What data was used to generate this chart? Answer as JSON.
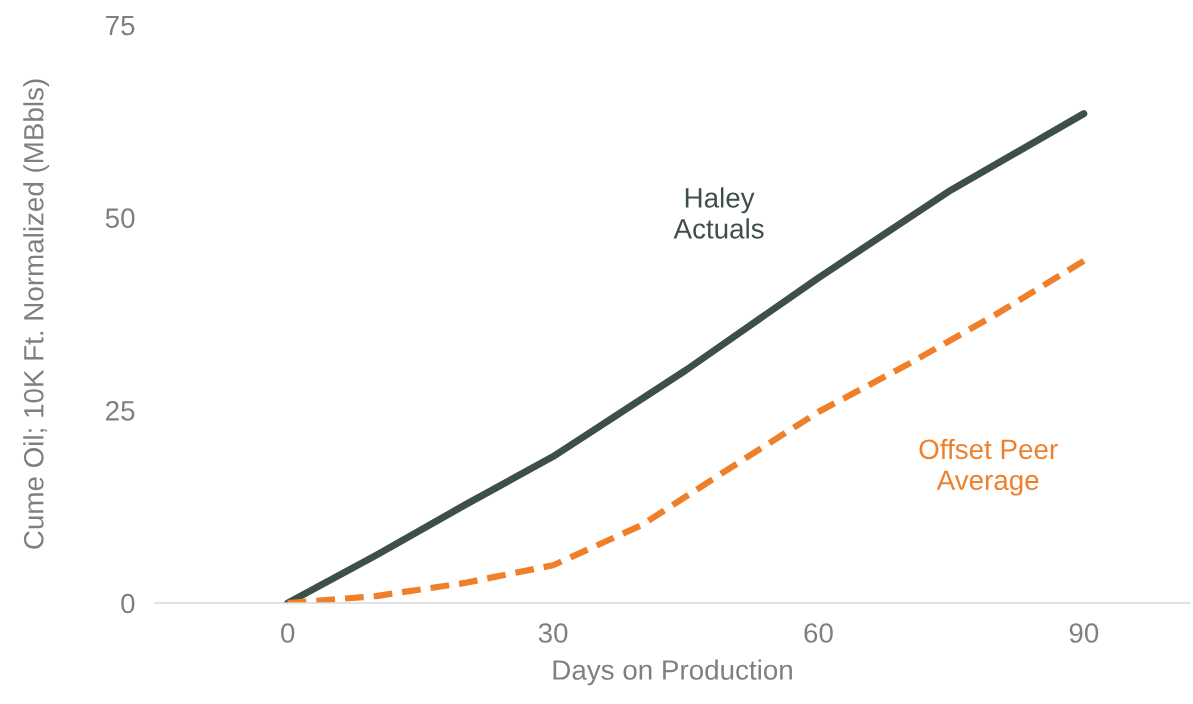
{
  "chart_data": {
    "type": "line",
    "xlabel": "Days on Production",
    "ylabel": "Cume Oil; 10K Ft. Normalized (MBbls)",
    "xlim": [
      -15,
      102
    ],
    "xticks": [
      0,
      30,
      60,
      90
    ],
    "ylim": [
      0,
      75
    ],
    "yticks": [
      0,
      25,
      50,
      75
    ],
    "grid": false,
    "legend": false,
    "marker": "none",
    "series": [
      {
        "name": "Haley\nActuals",
        "color": "#3d4f47",
        "line_style": "solid",
        "x": [
          0,
          10,
          20,
          30,
          45,
          60,
          75,
          90
        ],
        "values": [
          0,
          6.2,
          12.7,
          19,
          30.2,
          42.2,
          53.6,
          63.5
        ]
      },
      {
        "name": "Offset Peer\nAverage",
        "color": "#f07f2a",
        "line_style": "dashed",
        "x": [
          0,
          10,
          20,
          30,
          40,
          50,
          60,
          70,
          80,
          90
        ],
        "values": [
          0,
          0.9,
          2.6,
          4.9,
          10.1,
          17.5,
          24.8,
          30.9,
          37.4,
          44.4
        ]
      }
    ]
  }
}
